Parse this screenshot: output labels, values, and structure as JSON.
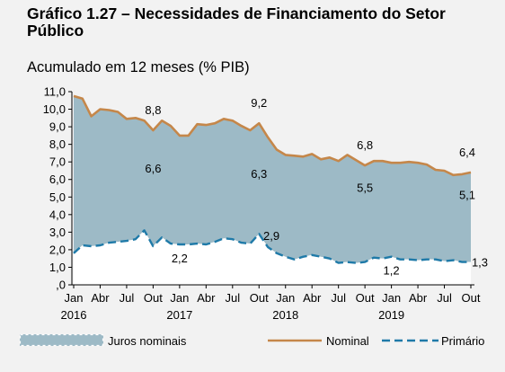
{
  "title": "Gráfico 1.27 – Necessidades de Financiamento do Setor Público",
  "subtitle": "Acumulado em 12 meses (% PIB)",
  "colors": {
    "area": "#9dbac6",
    "nominal": "#c5874a",
    "primary": "#1f7aa8",
    "area_legend_dots": "#ffffff"
  },
  "chart_data": {
    "type": "area",
    "x_dates": [
      "2016-01",
      "2016-02",
      "2016-03",
      "2016-04",
      "2016-05",
      "2016-06",
      "2016-07",
      "2016-08",
      "2016-09",
      "2016-10",
      "2016-11",
      "2016-12",
      "2017-01",
      "2017-02",
      "2017-03",
      "2017-04",
      "2017-05",
      "2017-06",
      "2017-07",
      "2017-08",
      "2017-09",
      "2017-10",
      "2017-11",
      "2017-12",
      "2018-01",
      "2018-02",
      "2018-03",
      "2018-04",
      "2018-05",
      "2018-06",
      "2018-07",
      "2018-08",
      "2018-09",
      "2018-10",
      "2018-11",
      "2018-12",
      "2019-01",
      "2019-02",
      "2019-03",
      "2019-04",
      "2019-05",
      "2019-06",
      "2019-07",
      "2019-08",
      "2019-09",
      "2019-10"
    ],
    "x_tick_labels": [
      "Jan",
      "Abr",
      "Jul",
      "Out",
      "Jan",
      "Abr",
      "Jul",
      "Out",
      "Jan",
      "Abr",
      "Jul",
      "Out",
      "Jan",
      "Abr",
      "Jul",
      "Out"
    ],
    "x_tick_month_index": [
      0,
      3,
      6,
      9,
      12,
      15,
      18,
      21,
      24,
      27,
      30,
      33,
      36,
      39,
      42,
      45
    ],
    "year_labels": [
      "2016",
      "2017",
      "2018",
      "2019"
    ],
    "year_label_month_index": [
      0,
      12,
      24,
      36
    ],
    "y_tick_labels": [
      ",0",
      "1,0",
      "2,0",
      "3,0",
      "4,0",
      "5,0",
      "6,0",
      "7,0",
      "8,0",
      "9,0",
      "10,0",
      "11,0"
    ],
    "ylim": [
      0,
      11
    ],
    "grid": false,
    "series": [
      {
        "name": "Nominal",
        "style": "line",
        "values": [
          10.75,
          10.6,
          9.6,
          10.0,
          9.95,
          9.85,
          9.45,
          9.5,
          9.35,
          8.8,
          9.35,
          9.05,
          8.5,
          8.5,
          9.15,
          9.1,
          9.2,
          9.45,
          9.35,
          9.05,
          8.8,
          9.2,
          8.4,
          7.7,
          7.4,
          7.35,
          7.3,
          7.45,
          7.15,
          7.25,
          7.05,
          7.4,
          7.1,
          6.8,
          7.05,
          7.05,
          6.95,
          6.95,
          7.0,
          6.95,
          6.85,
          6.55,
          6.5,
          6.25,
          6.3,
          6.4
        ]
      },
      {
        "name": "Juros nominais",
        "style": "area",
        "values": [
          8.95,
          8.35,
          7.4,
          7.75,
          7.55,
          7.4,
          6.95,
          6.9,
          6.25,
          6.6,
          6.65,
          6.7,
          6.2,
          6.2,
          6.8,
          6.8,
          6.75,
          6.8,
          6.75,
          6.65,
          6.45,
          6.3,
          6.25,
          5.9,
          5.8,
          5.9,
          5.7,
          5.75,
          5.55,
          5.75,
          5.8,
          6.1,
          5.85,
          5.5,
          5.5,
          5.55,
          5.35,
          5.5,
          5.55,
          5.55,
          5.4,
          5.1,
          5.15,
          4.85,
          5.0,
          5.1
        ]
      },
      {
        "name": "Primário",
        "style": "dashed-line",
        "values": [
          1.8,
          2.25,
          2.2,
          2.25,
          2.4,
          2.45,
          2.5,
          2.6,
          3.1,
          2.2,
          2.7,
          2.35,
          2.3,
          2.3,
          2.35,
          2.3,
          2.45,
          2.65,
          2.6,
          2.4,
          2.35,
          2.9,
          2.15,
          1.8,
          1.6,
          1.45,
          1.6,
          1.7,
          1.6,
          1.5,
          1.25,
          1.3,
          1.25,
          1.3,
          1.55,
          1.5,
          1.6,
          1.45,
          1.45,
          1.4,
          1.45,
          1.45,
          1.35,
          1.4,
          1.3,
          1.3
        ]
      }
    ],
    "annotations": [
      {
        "text": "8,8",
        "series": "Nominal",
        "month_index": 9
      },
      {
        "text": "9,2",
        "series": "Nominal",
        "month_index": 21
      },
      {
        "text": "6,8",
        "series": "Nominal",
        "month_index": 33
      },
      {
        "text": "6,4",
        "series": "Nominal",
        "month_index": 45
      },
      {
        "text": "6,6",
        "series": "Juros nominais",
        "month_index": 9
      },
      {
        "text": "6,3",
        "series": "Juros nominais",
        "month_index": 21
      },
      {
        "text": "5,5",
        "series": "Juros nominais",
        "month_index": 33
      },
      {
        "text": "5,1",
        "series": "Juros nominais",
        "month_index": 45
      },
      {
        "text": "2,2",
        "series": "Primário",
        "month_index": 12
      },
      {
        "text": "2,9",
        "series": "Primário",
        "month_index": 22
      },
      {
        "text": "1,2",
        "series": "Primário",
        "month_index": 36
      },
      {
        "text": "1,3",
        "series": "Primário",
        "month_index": 45
      }
    ],
    "legend": {
      "placement": "bottom",
      "entries": [
        {
          "label": "Juros nominais",
          "style": "area"
        },
        {
          "label": "Nominal",
          "style": "line"
        },
        {
          "label": "Primário",
          "style": "dashed-line"
        }
      ]
    }
  }
}
